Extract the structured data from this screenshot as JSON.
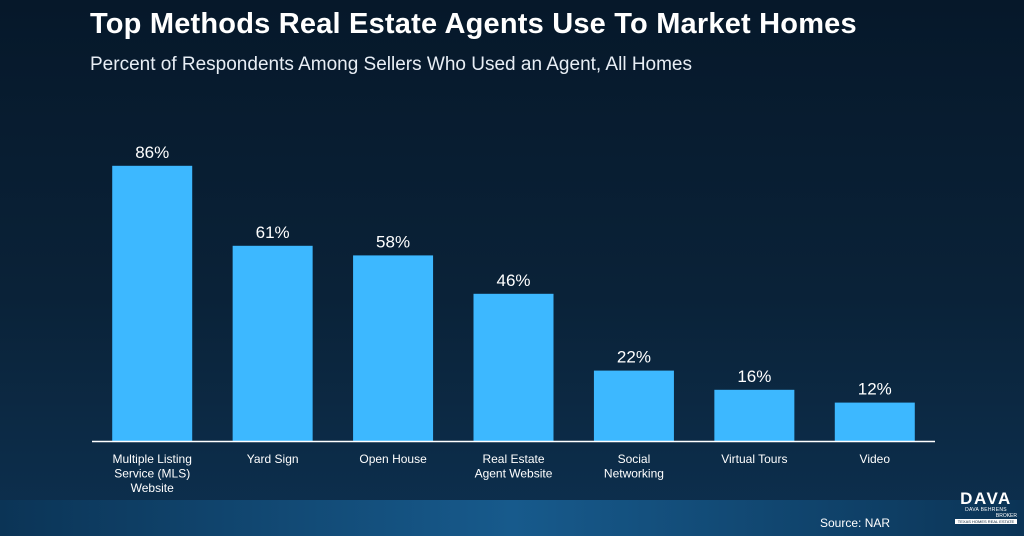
{
  "title": "Top Methods Real Estate Agents Use To Market Homes",
  "subtitle": "Percent of Respondents Among Sellers Who Used an Agent, All Homes",
  "source": "Source: NAR",
  "logo": {
    "word": "DAVA",
    "line1": "DAVA BEHRENS",
    "line2": "BROKER",
    "line3": "TEXAS HOMES REAL ESTATE"
  },
  "colors": {
    "bar": "#3db8ff",
    "axis": "#ffffff",
    "background": "#0a2238"
  },
  "chart_data": {
    "type": "bar",
    "categories": [
      "Multiple Listing Service (MLS) Website",
      "Yard Sign",
      "Open House",
      "Real Estate Agent Website",
      "Social Networking",
      "Virtual Tours",
      "Video"
    ],
    "category_lines": [
      [
        "Multiple Listing",
        "Service (MLS)",
        "Website"
      ],
      [
        "Yard Sign"
      ],
      [
        "Open House"
      ],
      [
        "Real Estate",
        "Agent Website"
      ],
      [
        "Social",
        "Networking"
      ],
      [
        "Virtual Tours"
      ],
      [
        "Video"
      ]
    ],
    "values": [
      86,
      61,
      58,
      46,
      22,
      16,
      12
    ],
    "value_labels": [
      "86%",
      "61%",
      "58%",
      "46%",
      "22%",
      "16%",
      "12%"
    ],
    "ylim": [
      0,
      100
    ],
    "xlabel": "",
    "ylabel": "",
    "grid": false,
    "legend": "none"
  }
}
